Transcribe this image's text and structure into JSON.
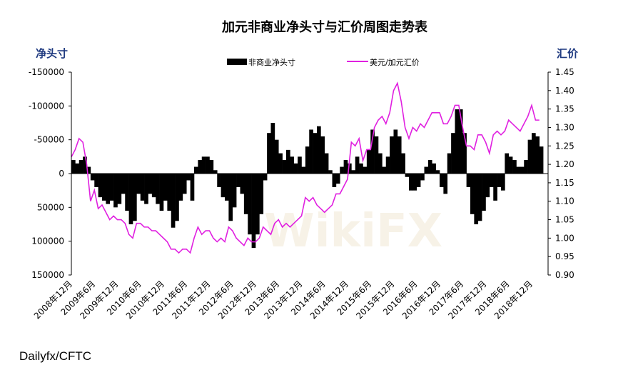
{
  "chart_data": {
    "type": "bar+line",
    "title": "加元非商业净头寸与汇价周图走势表",
    "ylabel_left": "净头寸",
    "ylabel_right": "汇价",
    "ylim_left": [
      -150000,
      150000
    ],
    "left_axis_inverted": true,
    "yticks_left": [
      "-150000",
      "-100000",
      "-50000",
      "0",
      "50000",
      "100000",
      "150000"
    ],
    "ylim_right": [
      0.9,
      1.45
    ],
    "yticks_right": [
      "1.45",
      "1.40",
      "1.35",
      "1.30",
      "1.25",
      "1.20",
      "1.15",
      "1.10",
      "1.05",
      "1.00",
      "0.95",
      "0.90"
    ],
    "xticks": [
      "2008年12月",
      "2009年6月",
      "2009年12月",
      "2010年6月",
      "2010年12月",
      "2011年6月",
      "2011年12月",
      "2012年6月",
      "2012年12月",
      "2013年6月",
      "2013年12月",
      "2014年6月",
      "2014年12月",
      "2015年6月",
      "2015年12月",
      "2016年6月",
      "2016年12月",
      "2017年6月",
      "2017年12月",
      "2018年6月",
      "2018年12月"
    ],
    "legend": {
      "placement": "top-center"
    },
    "series": [
      {
        "name": "非商业净头寸",
        "type": "bar",
        "axis": "left",
        "color": "#000000",
        "values": [
          -20000,
          -15000,
          -20000,
          -25000,
          -10000,
          10000,
          20000,
          35000,
          40000,
          45000,
          40000,
          50000,
          45000,
          30000,
          55000,
          75000,
          70000,
          30000,
          40000,
          45000,
          30000,
          35000,
          45000,
          55000,
          40000,
          55000,
          80000,
          70000,
          40000,
          30000,
          10000,
          40000,
          -10000,
          -20000,
          -25000,
          -25000,
          -20000,
          -5000,
          20000,
          35000,
          40000,
          70000,
          50000,
          20000,
          30000,
          60000,
          90000,
          110000,
          90000,
          60000,
          10000,
          -60000,
          -75000,
          -50000,
          -30000,
          -20000,
          -35000,
          -25000,
          -15000,
          -25000,
          -10000,
          -40000,
          -65000,
          -60000,
          -70000,
          -55000,
          -30000,
          -5000,
          20000,
          15000,
          -10000,
          -20000,
          -15000,
          -5000,
          -25000,
          -15000,
          -10000,
          -35000,
          -65000,
          -55000,
          -30000,
          -10000,
          -25000,
          -55000,
          -65000,
          -55000,
          -30000,
          5000,
          25000,
          25000,
          20000,
          10000,
          -10000,
          -20000,
          -15000,
          -5000,
          20000,
          30000,
          -30000,
          -60000,
          -95000,
          -95000,
          -60000,
          20000,
          60000,
          75000,
          70000,
          55000,
          35000,
          20000,
          40000,
          20000,
          25000,
          -30000,
          -25000,
          -20000,
          -10000,
          -10000,
          -20000,
          -50000,
          -60000,
          -55000,
          -40000
        ]
      },
      {
        "name": "美元/加元汇价",
        "type": "line",
        "axis": "right",
        "color": "#e020e0",
        "values": [
          1.22,
          1.24,
          1.27,
          1.26,
          1.2,
          1.1,
          1.13,
          1.08,
          1.09,
          1.07,
          1.05,
          1.06,
          1.05,
          1.05,
          1.04,
          1.01,
          1.0,
          1.04,
          1.04,
          1.03,
          1.03,
          1.02,
          1.02,
          1.01,
          1.0,
          0.99,
          0.97,
          0.97,
          0.96,
          0.97,
          0.97,
          0.96,
          1.0,
          1.03,
          1.01,
          1.02,
          1.02,
          1.0,
          0.99,
          1.0,
          0.99,
          1.03,
          1.02,
          1.0,
          0.99,
          0.98,
          1.0,
          0.99,
          0.99,
          1.0,
          1.03,
          1.02,
          1.01,
          1.04,
          1.05,
          1.03,
          1.04,
          1.03,
          1.04,
          1.05,
          1.06,
          1.11,
          1.1,
          1.11,
          1.09,
          1.08,
          1.07,
          1.08,
          1.09,
          1.12,
          1.12,
          1.14,
          1.16,
          1.26,
          1.25,
          1.27,
          1.21,
          1.24,
          1.24,
          1.3,
          1.32,
          1.33,
          1.31,
          1.34,
          1.4,
          1.42,
          1.37,
          1.3,
          1.27,
          1.3,
          1.29,
          1.31,
          1.3,
          1.32,
          1.34,
          1.34,
          1.34,
          1.31,
          1.31,
          1.33,
          1.36,
          1.36,
          1.3,
          1.25,
          1.25,
          1.24,
          1.28,
          1.28,
          1.26,
          1.23,
          1.28,
          1.29,
          1.28,
          1.29,
          1.32,
          1.31,
          1.3,
          1.29,
          1.31,
          1.33,
          1.36,
          1.32,
          1.32
        ]
      }
    ]
  },
  "source": "Dailyfx/CFTC",
  "watermark": "WikiFX"
}
